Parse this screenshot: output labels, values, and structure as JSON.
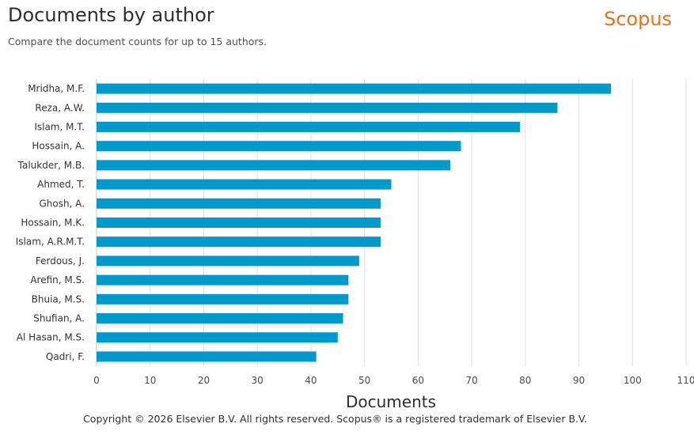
{
  "header": {
    "title": "Documents by author",
    "subtitle": "Compare the document counts for up to 15 authors.",
    "brand": "Scopus"
  },
  "footer": {
    "copyright": "Copyright © 2026 Elsevier B.V. All rights reserved. Scopus® is a registered trademark of Elsevier B.V."
  },
  "colors": {
    "bar": "#0099cc",
    "grid": "#e0e0e0",
    "brand": "#e9711c"
  },
  "chart_data": {
    "type": "bar",
    "orientation": "horizontal",
    "title": "Documents by author",
    "xlabel": "Documents",
    "ylabel": "",
    "xlim": [
      0,
      110
    ],
    "xticks": [
      0,
      10,
      20,
      30,
      40,
      50,
      60,
      70,
      80,
      90,
      100,
      110
    ],
    "grid": true,
    "categories": [
      "Mridha, M.F.",
      "Reza, A.W.",
      "Islam, M.T.",
      "Hossain, A.",
      "Talukder, M.B.",
      "Ahmed, T.",
      "Ghosh, A.",
      "Hossain, M.K.",
      "Islam, A.R.M.T.",
      "Ferdous, J.",
      "Arefin, M.S.",
      "Bhuia, M.S.",
      "Shufian, A.",
      "Al Hasan, M.S.",
      "Qadri, F."
    ],
    "values": [
      96,
      86,
      79,
      68,
      66,
      55,
      53,
      53,
      53,
      49,
      47,
      47,
      46,
      45,
      41
    ]
  }
}
